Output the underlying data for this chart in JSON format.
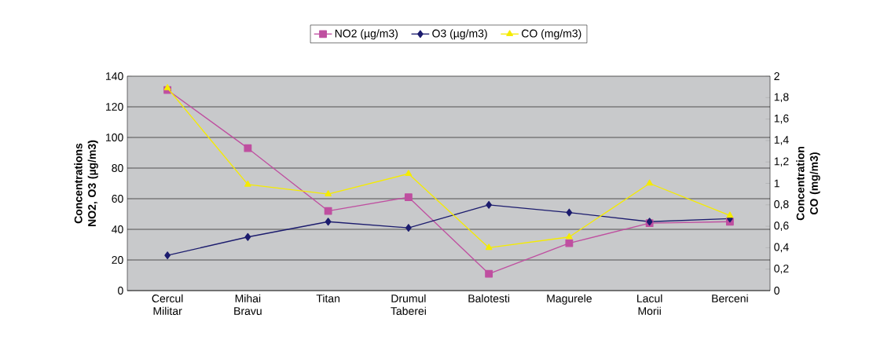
{
  "chart_data": {
    "type": "line",
    "categories": [
      "Cercul Militar",
      "Mihai Bravu",
      "Titan",
      "Drumul Taberei",
      "Balotesti",
      "Magurele",
      "Lacul Morii",
      "Berceni"
    ],
    "series": [
      {
        "name": "NO2 (µg/m3)",
        "color": "#bf4fa0",
        "marker": "square",
        "values": [
          131,
          93,
          52,
          61,
          11,
          31,
          44,
          45
        ]
      },
      {
        "name": "O3 (µg/m3)",
        "color": "#1c1c6e",
        "marker": "diamond",
        "values": [
          23,
          35,
          45,
          41,
          56,
          51,
          45,
          47
        ]
      },
      {
        "name": "CO (mg/m3)",
        "color": "#f5eb00",
        "marker": "triangle",
        "axis": "y2",
        "values": [
          1.89,
          0.99,
          0.9,
          1.09,
          0.4,
          0.5,
          1.0,
          0.7
        ]
      }
    ],
    "ylabel": "Concentrations NO2, O3 (µg/m3)",
    "y2label": "Concentration CO (mg/m3)",
    "ylim": [
      0,
      140
    ],
    "yticks": [
      0,
      20,
      40,
      60,
      80,
      100,
      120,
      140
    ],
    "y2lim": [
      0,
      2
    ],
    "y2ticks": [
      0,
      {
        "value": 0.2,
        "label": "0,2"
      },
      {
        "value": 0.4,
        "label": "0,4"
      },
      {
        "value": 0.6,
        "label": "0,6"
      },
      {
        "value": 0.8,
        "label": "0,8"
      },
      1,
      {
        "value": 1.2,
        "label": "1,2"
      },
      {
        "value": 1.4,
        "label": "1,4"
      },
      {
        "value": 1.6,
        "label": "1,6"
      },
      {
        "value": 1.8,
        "label": "1,8"
      },
      2
    ],
    "grid": "y",
    "legend": "top"
  }
}
